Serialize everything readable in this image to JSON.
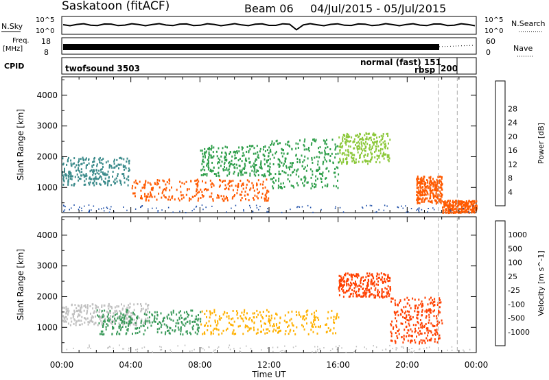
{
  "header": {
    "station": "Saskatoon (fitACF)",
    "beam": "Beam 06",
    "date_range": "04/Jul/2015 - 05/Jul/2015"
  },
  "top_panels": {
    "nsky_label": "N.Sky",
    "nsky_ticks": [
      "10^5",
      "10^0"
    ],
    "nsearch_label": "N.Search",
    "nsearch_ticks": [
      "10^5",
      "10^0"
    ],
    "freq_label": "Freq.",
    "freq_unit": "[MHz]",
    "freq_ticks": [
      "18",
      "8"
    ],
    "nave_label": "Nave",
    "nave_ticks": [
      "60",
      "0"
    ],
    "cpid_label": "CPID",
    "cpid_entries": [
      "twofsound 3503",
      "normal (fast) 151",
      "rbsp",
      "200"
    ]
  },
  "chart_data": [
    {
      "type": "heatmap",
      "title": "",
      "ylabel": "Slant Range [km]",
      "xlabel": "",
      "ylim": [
        180,
        4600
      ],
      "xlim": [
        0,
        24
      ],
      "y_ticks": [
        "1000",
        "2000",
        "3000",
        "4000"
      ],
      "x_ticks": [
        "00:00",
        "04:00",
        "08:00",
        "12:00",
        "16:00",
        "20:00",
        "00:00"
      ],
      "colorbar": {
        "label": "Power [dB]",
        "ticks": [
          "4",
          "8",
          "12",
          "16",
          "20",
          "24",
          "28"
        ],
        "colors": [
          "#0000ff",
          "#1f4fa8",
          "#3a8a8a",
          "#2e9e4a",
          "#8cc83a",
          "#f2c418",
          "#ff9a00",
          "#ff5a00",
          "#ff0000"
        ]
      },
      "regions": [
        {
          "t": [
            0,
            4
          ],
          "r": [
            1100,
            2000
          ],
          "level": 8,
          "note": "blue-green band"
        },
        {
          "t": [
            4,
            12
          ],
          "r": [
            600,
            1300
          ],
          "level": 26
        },
        {
          "t": [
            8,
            12
          ],
          "r": [
            1400,
            2400
          ],
          "level": 14
        },
        {
          "t": [
            12,
            16
          ],
          "r": [
            1000,
            2600
          ],
          "level": 12
        },
        {
          "t": [
            16,
            19
          ],
          "r": [
            1800,
            2800
          ],
          "level": 16
        },
        {
          "t": [
            20.5,
            22
          ],
          "r": [
            500,
            1400
          ],
          "level": 26
        },
        {
          "t": [
            22,
            24
          ],
          "r": [
            200,
            600
          ],
          "level": 26
        }
      ]
    },
    {
      "type": "heatmap",
      "title": "",
      "ylabel": "Slant Range [km]",
      "xlabel": "Time UT",
      "ylim": [
        180,
        4600
      ],
      "xlim": [
        0,
        24
      ],
      "y_ticks": [
        "1000",
        "2000",
        "3000",
        "4000"
      ],
      "x_ticks": [
        "00:00",
        "04:00",
        "08:00",
        "12:00",
        "16:00",
        "20:00",
        "00:00"
      ],
      "colorbar": {
        "label": "Velocity [m s^-1]",
        "ticks": [
          "1000",
          "500",
          "100",
          "25",
          "-25",
          "-100",
          "-500",
          "-1000"
        ],
        "colors": [
          "#1f3fc0",
          "#3a7aa0",
          "#3a9a5a",
          "#6ac83a",
          "#c0c0c0",
          "#ffb000",
          "#ff8000",
          "#ff4000",
          "#ff0000"
        ]
      },
      "regions": [
        {
          "t": [
            0,
            5
          ],
          "r": [
            1100,
            1800
          ],
          "level": 0
        },
        {
          "t": [
            2,
            8
          ],
          "r": [
            800,
            1600
          ],
          "level": 100
        },
        {
          "t": [
            8,
            16
          ],
          "r": [
            800,
            1600
          ],
          "level": -100
        },
        {
          "t": [
            16,
            19
          ],
          "r": [
            2000,
            2800
          ],
          "level": -500
        },
        {
          "t": [
            19,
            22
          ],
          "r": [
            500,
            2000
          ],
          "level": -500
        }
      ]
    }
  ]
}
